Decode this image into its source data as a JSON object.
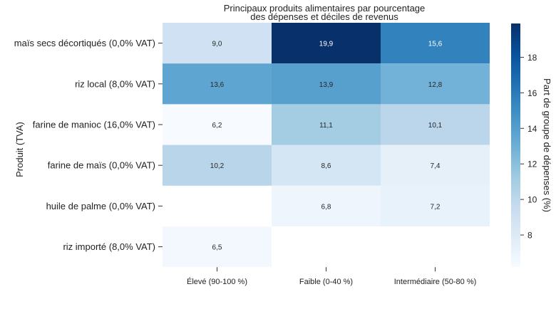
{
  "chart_data": {
    "type": "heatmap",
    "title": "Principaux produits alimentaires par pourcentage\ndes dépenses et déciles de revenus",
    "xlabel": "",
    "ylabel": "Produit (TVA)",
    "colorbar_label": "Part de groupe de dépenses (%)",
    "columns": [
      "Élevé (90-100 %)",
      "Faible (0-40 %)",
      "Intermédiaire (50-80 %)"
    ],
    "rows": [
      "maïs secs décortiqués (0,0% VAT)",
      "riz local (8,0% VAT)",
      "farine de manioc (16,0% VAT)",
      "farine de maïs (0,0% VAT)",
      "huile de palme (0,0% VAT)",
      "riz importé (8,0% VAT)"
    ],
    "values": [
      [
        9.0,
        19.9,
        15.6
      ],
      [
        13.6,
        13.9,
        12.8
      ],
      [
        6.2,
        11.1,
        10.1
      ],
      [
        10.2,
        8.6,
        7.4
      ],
      [
        null,
        6.8,
        7.2
      ],
      [
        6.5,
        null,
        null
      ]
    ],
    "labels": [
      [
        "9,0",
        "19,9",
        "15,6"
      ],
      [
        "13,6",
        "13,9",
        "12,8"
      ],
      [
        "6,2",
        "11,1",
        "10,1"
      ],
      [
        "10,2",
        "8,6",
        "7,4"
      ],
      [
        "",
        "6,8",
        "7,2"
      ],
      [
        "6,5",
        "",
        ""
      ]
    ],
    "colorbar_range": [
      6.2,
      19.9
    ],
    "colorbar_ticks": [
      "8",
      "10",
      "12",
      "14",
      "16",
      "18"
    ],
    "colormap": "Blues"
  }
}
